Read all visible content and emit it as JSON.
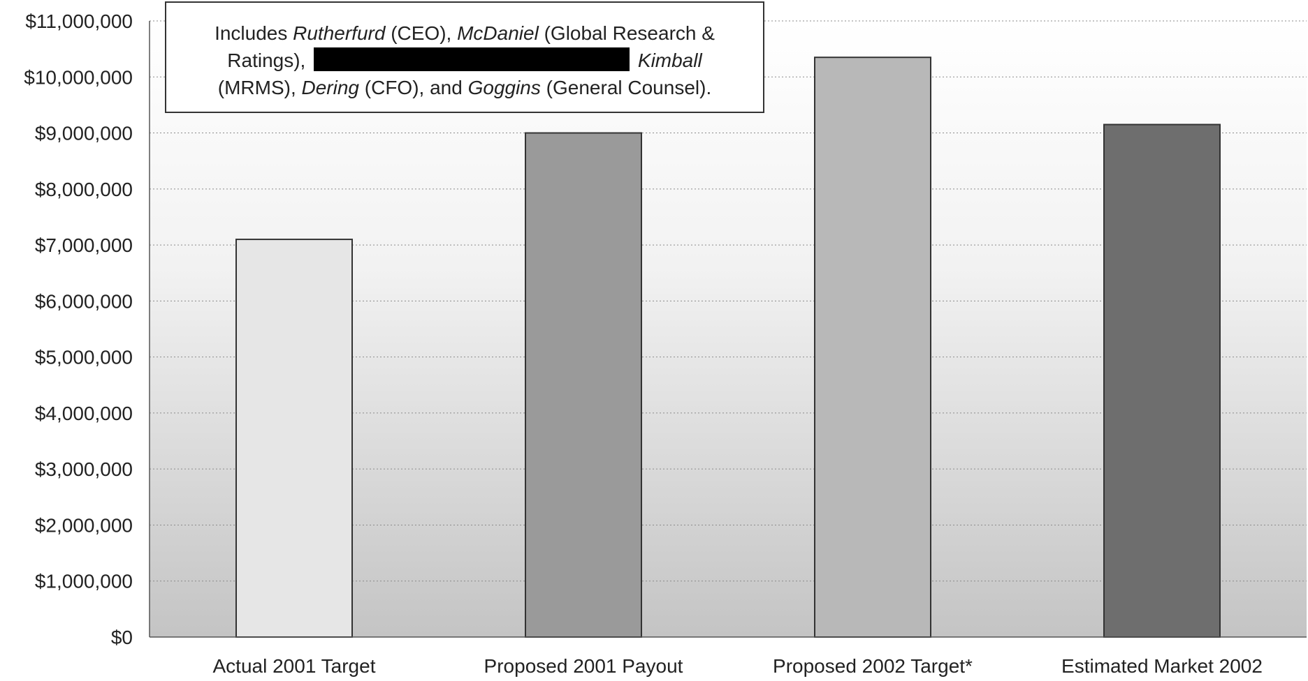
{
  "chart_data": {
    "type": "bar",
    "categories": [
      "Actual 2001 Target",
      "Proposed 2001 Payout",
      "Proposed 2002 Target*",
      "Estimated Market 2002"
    ],
    "values": [
      7100000,
      9000000,
      10350000,
      9150000
    ],
    "title": "",
    "xlabel": "",
    "ylabel": "",
    "ylim": [
      0,
      11000000
    ],
    "yticks": [
      "$0",
      "$1,000,000",
      "$2,000,000",
      "$3,000,000",
      "$4,000,000",
      "$5,000,000",
      "$6,000,000",
      "$7,000,000",
      "$8,000,000",
      "$9,000,000",
      "$10,000,000",
      "$11,000,000"
    ],
    "grid": true,
    "bar_colors": [
      "#e6e6e6",
      "#9a9a9a",
      "#b8b8b8",
      "#6e6e6e"
    ]
  },
  "annotation": {
    "prefix": "Includes ",
    "name1": "Rutherfurd",
    "role1": " (CEO), ",
    "name2": "McDaniel",
    "role2a": " (Global Research &",
    "role2b": "Ratings), ",
    "name3": "Kimball",
    "role3": "(MRMS), ",
    "name4": "Dering",
    "role4": " (CFO), and ",
    "name5": "Goggins",
    "role5": " (General Counsel)."
  }
}
